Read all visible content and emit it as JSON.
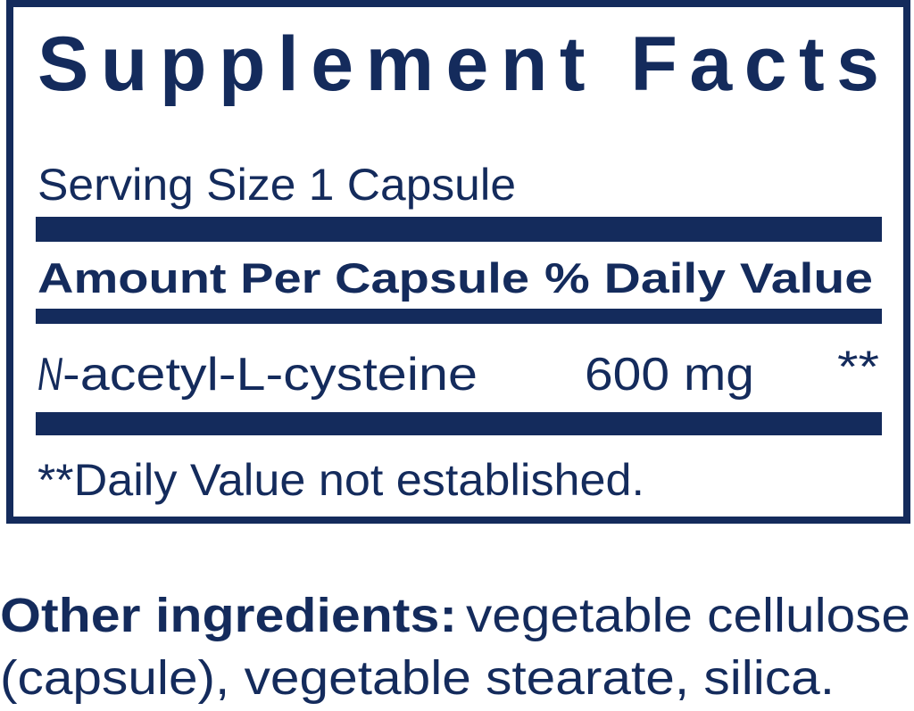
{
  "colors": {
    "ink": "#142b5c",
    "background": "#ffffff"
  },
  "panel": {
    "title": "Supplement Facts",
    "serving_size": "Serving Size 1 Capsule",
    "header": {
      "amount": "Amount Per Capsule",
      "daily_value": "% Daily Value"
    },
    "rows": [
      {
        "name_prefix": "N",
        "name_rest": "-acetyl-L-cysteine",
        "amount": "600 mg",
        "dv": "**"
      }
    ],
    "footnote": "**Daily Value not established."
  },
  "other_ingredients": {
    "label": "Other ingredients:",
    "line1": "vegetable cellulose",
    "line2": "(capsule), vegetable stearate, silica."
  }
}
